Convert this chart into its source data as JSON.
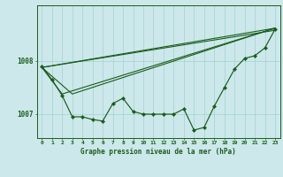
{
  "title": "Graphe pression niveau de la mer (hPa)",
  "background_color": "#cce8ea",
  "plot_bg_color": "#cce8ea",
  "grid_color": "#99cccc",
  "line_color": "#1a5c1a",
  "marker_color": "#1a5c1a",
  "xlim": [
    -0.5,
    23.5
  ],
  "ylim": [
    1006.55,
    1009.05
  ],
  "yticks": [
    1007,
    1008
  ],
  "xticks": [
    0,
    1,
    2,
    3,
    4,
    5,
    6,
    7,
    8,
    9,
    10,
    11,
    12,
    13,
    14,
    15,
    16,
    17,
    18,
    19,
    20,
    21,
    22,
    23
  ],
  "zigzag": [
    1007.9,
    1007.65,
    1007.35,
    1006.95,
    1006.95,
    1006.9,
    1006.87,
    1007.2,
    1007.3,
    1007.05,
    1007.0,
    1007.0,
    1007.0,
    1007.0,
    1007.1,
    1006.7,
    1006.75,
    1007.15,
    1007.5,
    1007.85,
    1008.05,
    1008.1,
    1008.25,
    1008.6
  ],
  "trend1_x": [
    0,
    23
  ],
  "trend1_y": [
    1007.88,
    1008.58
  ],
  "trend2_x": [
    0,
    23
  ],
  "trend2_y": [
    1007.88,
    1008.62
  ],
  "trend3_x": [
    0,
    2,
    23
  ],
  "trend3_y": [
    1007.88,
    1007.38,
    1008.62
  ],
  "trend4_x": [
    0,
    3,
    23
  ],
  "trend4_y": [
    1007.88,
    1007.38,
    1008.62
  ]
}
